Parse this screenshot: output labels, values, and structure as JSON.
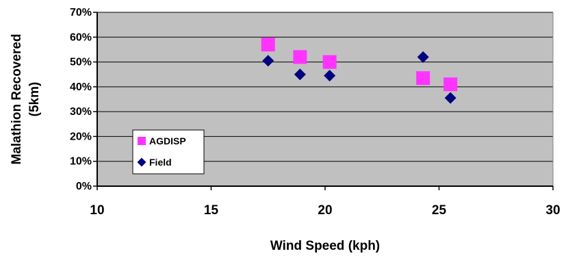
{
  "chart_data": {
    "type": "scatter",
    "xlabel": "Wind Speed (kph)",
    "ylabel": [
      "Malathion Recovered",
      "(5km)"
    ],
    "xlim": [
      10,
      30
    ],
    "ylim": [
      0,
      0.7
    ],
    "x_ticks": [
      10,
      15,
      20,
      25,
      30
    ],
    "x_tick_labels": [
      "10",
      "15",
      "20",
      "25",
      "30"
    ],
    "y_ticks": [
      0,
      0.1,
      0.2,
      0.3,
      0.4,
      0.5,
      0.6,
      0.7
    ],
    "y_tick_labels": [
      "0%",
      "10%",
      "20%",
      "30%",
      "40%",
      "50%",
      "60%",
      "70%"
    ],
    "grid": "horizontal",
    "background": "#c0c0c0",
    "legend": {
      "placement": "inside-bottom-left"
    },
    "series": [
      {
        "name": "AGDISP",
        "marker": "square",
        "color": "#ff33ff",
        "x": [
          17.5,
          18.9,
          20.2,
          24.3,
          25.5
        ],
        "y": [
          0.57,
          0.52,
          0.5,
          0.435,
          0.41
        ]
      },
      {
        "name": "Field",
        "marker": "diamond",
        "color": "#000080",
        "x": [
          17.5,
          18.9,
          20.2,
          24.3,
          25.5
        ],
        "y": [
          0.505,
          0.45,
          0.445,
          0.52,
          0.355
        ]
      }
    ]
  }
}
